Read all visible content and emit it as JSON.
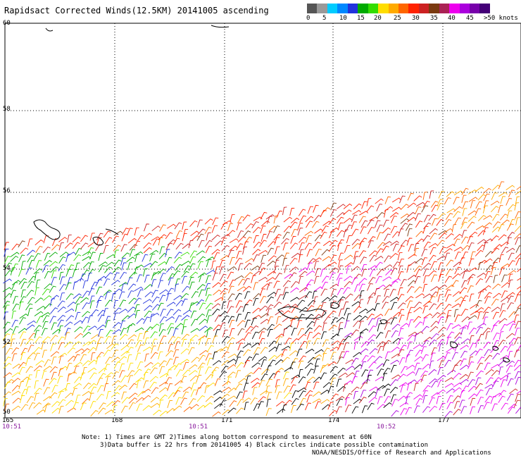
{
  "title": "Rapidsact Corrected Winds(12.5KM) 20141005 ascending",
  "colorbar": {
    "colors": [
      "#555555",
      "#999999",
      "#00ccff",
      "#0088ff",
      "#2233dd",
      "#00aa00",
      "#33dd00",
      "#ffdd00",
      "#ffaa00",
      "#ff6600",
      "#ff2200",
      "#cc2222",
      "#7a3a10",
      "#aa2255",
      "#ee00ee",
      "#aa00dd",
      "#7700aa",
      "#440077"
    ],
    "labels": [
      "0",
      "5",
      "10",
      "15",
      "20",
      "25",
      "30",
      "35",
      "40",
      "45",
      ">50 knots"
    ]
  },
  "axes": {
    "lat_labels": [
      "60",
      "58",
      "56",
      "54",
      "52",
      "50"
    ],
    "lon_labels": [
      "165",
      "168",
      "171",
      "174",
      "177"
    ],
    "time_labels": [
      "10:51",
      "10:51",
      "10:52"
    ]
  },
  "notes": {
    "line1": "Note: 1) Times are GMT 2)Times along bottom correspond to measurement at 60N",
    "line2": "3)Data buffer is 22 hrs from 20141005 4) Black circles indicate possible contamination",
    "credit": "NOAA/NESDIS/Office of Research and Applications"
  }
}
